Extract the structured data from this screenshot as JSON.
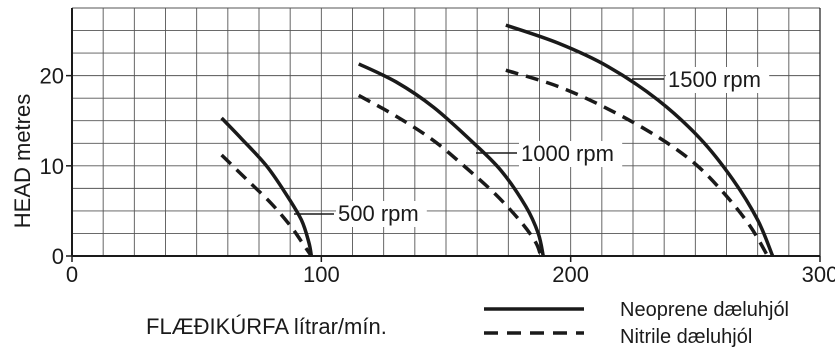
{
  "chart_data": {
    "type": "line",
    "title": "",
    "xlabel": "FLÆÐIKÚRFA lítrar/mín.",
    "ylabel": "HEAD metres",
    "xlim": [
      0,
      300
    ],
    "ylim": [
      0,
      27.5
    ],
    "x_ticks": [
      "0",
      "100",
      "200",
      "300"
    ],
    "y_ticks": [
      "0",
      "10",
      "20"
    ],
    "grid": true,
    "legend_placement": "bottom-right",
    "legend": [
      {
        "label": "Neoprene dæluhjól",
        "style": "solid"
      },
      {
        "label": "Nitrile dæluhjól",
        "style": "dashed"
      }
    ],
    "series": [
      {
        "name": "500 rpm",
        "impeller": "Neoprene",
        "style": "solid",
        "x": [
          60,
          68,
          78,
          86,
          92,
          95,
          96
        ],
        "y": [
          15.3,
          13,
          10,
          6.8,
          4,
          1.5,
          0
        ]
      },
      {
        "name": "500 rpm",
        "impeller": "Nitrile",
        "style": "dashed",
        "x": [
          60,
          70,
          80,
          88,
          93,
          96
        ],
        "y": [
          11.2,
          8.5,
          5.8,
          3.2,
          1.2,
          0
        ]
      },
      {
        "name": "1000 rpm",
        "impeller": "Neoprene",
        "style": "solid",
        "x": [
          115,
          130,
          145,
          160,
          172,
          182,
          187,
          189
        ],
        "y": [
          21.3,
          19.3,
          16.5,
          12.8,
          9.5,
          5.5,
          2.5,
          0
        ]
      },
      {
        "name": "1000 rpm",
        "impeller": "Nitrile",
        "style": "dashed",
        "x": [
          115,
          130,
          145,
          158,
          170,
          180,
          186,
          188
        ],
        "y": [
          17.8,
          15.5,
          12.8,
          9.8,
          6.8,
          3.8,
          1.5,
          0
        ]
      },
      {
        "name": "1500 rpm",
        "impeller": "Neoprene",
        "style": "solid",
        "x": [
          174,
          195,
          215,
          235,
          252,
          265,
          275,
          281
        ],
        "y": [
          25.6,
          23.6,
          21,
          17.3,
          13,
          8.5,
          4,
          0
        ]
      },
      {
        "name": "1500 rpm",
        "impeller": "Nitrile",
        "style": "dashed",
        "x": [
          174,
          195,
          215,
          235,
          250,
          262,
          272,
          279
        ],
        "y": [
          20.6,
          18.8,
          16.3,
          13.2,
          10.2,
          6.8,
          3.3,
          0
        ]
      }
    ],
    "annotations": [
      {
        "text": "500 rpm",
        "series": "500 rpm"
      },
      {
        "text": "1000 rpm",
        "series": "1000 rpm"
      },
      {
        "text": "1500 rpm",
        "series": "1500 rpm"
      }
    ]
  }
}
